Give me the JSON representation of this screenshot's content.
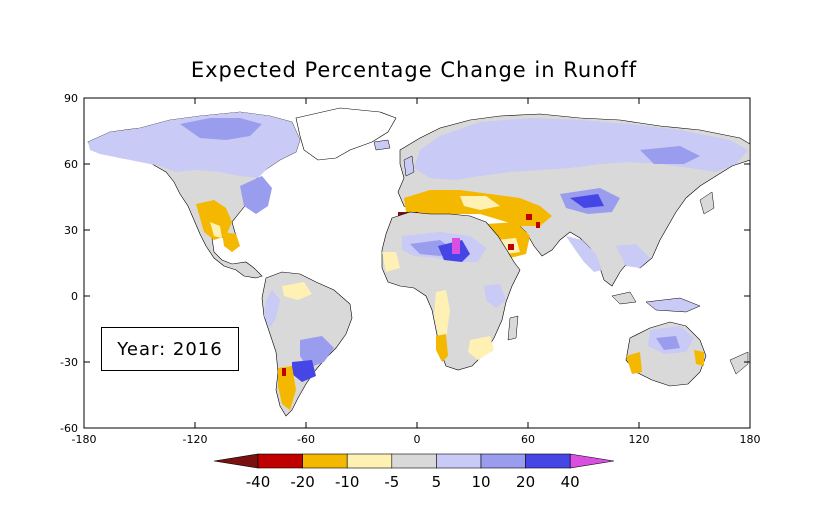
{
  "map": {
    "title": "Expected Percentage Change in Runoff",
    "year_label": "Year: 2016",
    "x_ticks": [
      "-180",
      "-120",
      "-60",
      "0",
      "60",
      "120",
      "180"
    ],
    "y_ticks": [
      "90",
      "60",
      "30",
      "0",
      "-30",
      "-60"
    ],
    "projection": "equirectangular, lon -180..180, lat -60..90"
  },
  "legend": {
    "labels": [
      "-40",
      "-20",
      "-10",
      "-5",
      "5",
      "10",
      "20",
      "40"
    ],
    "colors": [
      "#7a1010",
      "#c00000",
      "#f5b800",
      "#fff0b4",
      "#d9d9d9",
      "#c9caf5",
      "#9a9cee",
      "#4646e6",
      "#d94fe0"
    ]
  }
}
